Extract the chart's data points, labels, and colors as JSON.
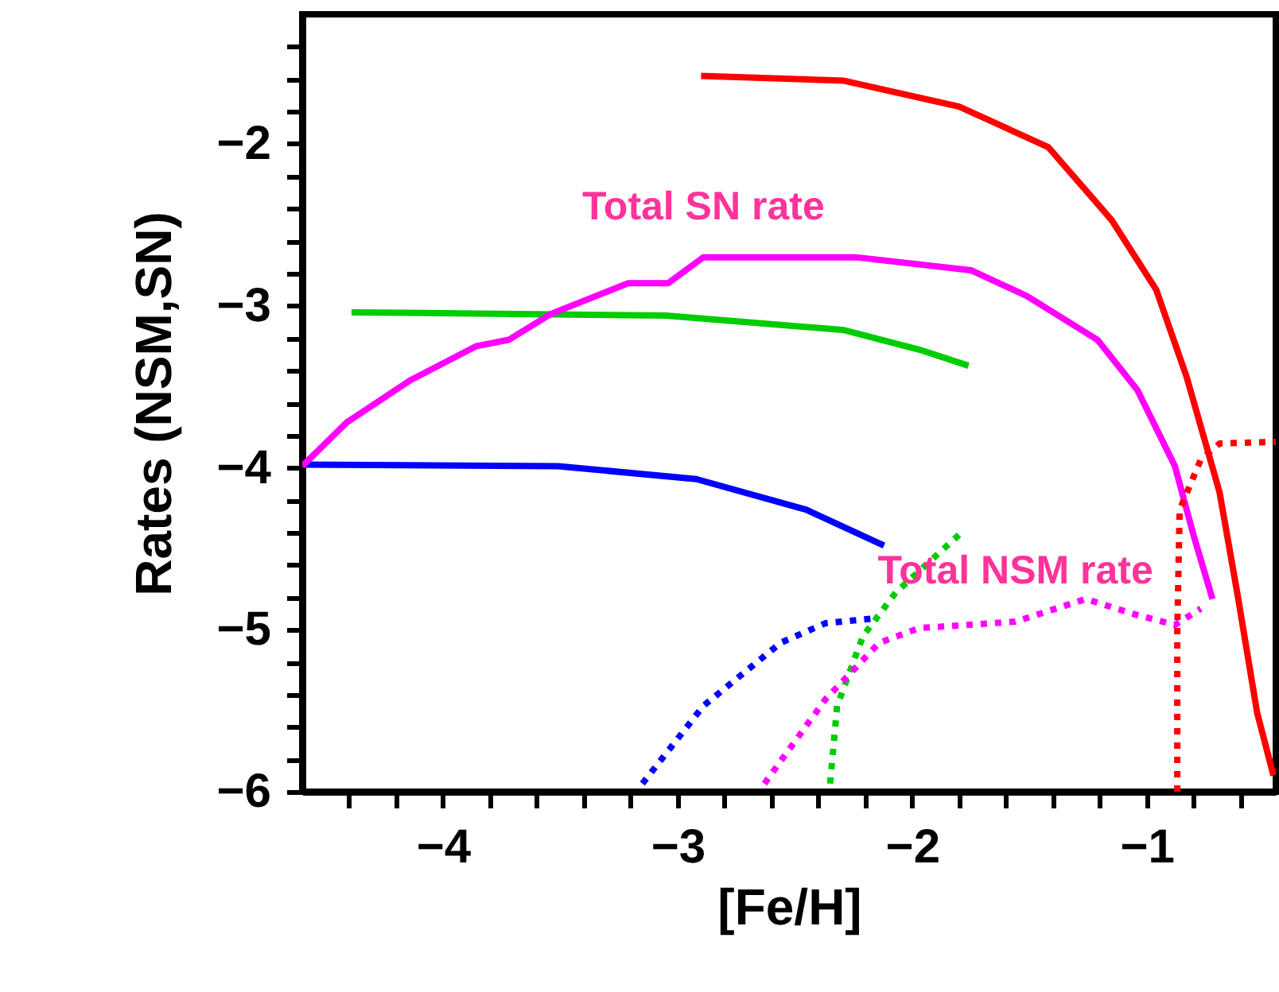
{
  "chart_data": {
    "type": "line",
    "xlabel": "[Fe/H]",
    "ylabel": "Rates  (NSM,SN)",
    "xlim": [
      -4.6,
      -0.45
    ],
    "ylim": [
      -6,
      -1.2
    ],
    "xticks": [
      {
        "value": -4.4,
        "label": null
      },
      {
        "value": -4.2,
        "label": null
      },
      -4,
      {
        "value": -3.8,
        "label": null
      },
      {
        "value": -3.6,
        "label": null
      },
      {
        "value": -3.4,
        "label": null
      },
      {
        "value": -3.2,
        "label": null
      },
      -3,
      {
        "value": -2.8,
        "label": null
      },
      {
        "value": -2.6,
        "label": null
      },
      {
        "value": -2.4,
        "label": null
      },
      {
        "value": -2.2,
        "label": null
      },
      -2,
      {
        "value": -1.8,
        "label": null
      },
      {
        "value": -1.6,
        "label": null
      },
      {
        "value": -1.4,
        "label": null
      },
      {
        "value": -1.2,
        "label": null
      },
      -1,
      {
        "value": -0.8,
        "label": null
      },
      {
        "value": -0.6,
        "label": null
      }
    ],
    "yticks": [
      -6,
      {
        "value": -5.8,
        "label": null
      },
      {
        "value": -5.6,
        "label": null
      },
      {
        "value": -5.4,
        "label": null
      },
      {
        "value": -5.2,
        "label": null
      },
      -5,
      {
        "value": -4.8,
        "label": null
      },
      {
        "value": -4.6,
        "label": null
      },
      {
        "value": -4.4,
        "label": null
      },
      {
        "value": -4.2,
        "label": null
      },
      -4,
      {
        "value": -3.8,
        "label": null
      },
      {
        "value": -3.6,
        "label": null
      },
      {
        "value": -3.4,
        "label": null
      },
      {
        "value": -3.2,
        "label": null
      },
      -3,
      {
        "value": -2.8,
        "label": null
      },
      {
        "value": -2.6,
        "label": null
      },
      {
        "value": -2.4,
        "label": null
      },
      {
        "value": -2.2,
        "label": null
      },
      -2,
      {
        "value": -1.8,
        "label": null
      },
      {
        "value": -1.6,
        "label": null
      },
      {
        "value": -1.4,
        "label": null
      }
    ],
    "grid": false,
    "series": [
      {
        "color": "#ff0000",
        "line_style": "solid",
        "x": [
          -2.9,
          -2.29,
          -1.8,
          -1.42,
          -1.15,
          -0.96,
          -0.83,
          -0.69,
          -0.61,
          -0.53,
          -0.46
        ],
        "values": [
          -1.58,
          -1.61,
          -1.77,
          -2.02,
          -2.47,
          -2.9,
          -3.44,
          -4.15,
          -4.81,
          -5.51,
          -5.9
        ]
      },
      {
        "color": "#00cc00",
        "line_style": "solid",
        "x": [
          -4.39,
          -3.05,
          -2.29,
          -1.97,
          -1.76
        ],
        "values": [
          -3.04,
          -3.06,
          -3.15,
          -3.27,
          -3.37
        ]
      },
      {
        "color": "#0000ff",
        "line_style": "solid",
        "x": [
          -4.6,
          -3.51,
          -2.92,
          -2.45,
          -2.12
        ],
        "values": [
          -3.98,
          -3.99,
          -4.07,
          -4.26,
          -4.48
        ]
      },
      {
        "name": "Total SN rate",
        "color": "#ff00ff",
        "line_style": "solid",
        "x": [
          -4.6,
          -4.41,
          -4.14,
          -3.86,
          -3.72,
          -3.54,
          -3.21,
          -3.04,
          -2.89,
          -2.24,
          -1.75,
          -1.51,
          -1.21,
          -1.04,
          -0.88,
          -0.8,
          -0.72
        ],
        "values": [
          -3.99,
          -3.72,
          -3.46,
          -3.25,
          -3.21,
          -3.05,
          -2.86,
          -2.86,
          -2.7,
          -2.7,
          -2.78,
          -2.94,
          -3.21,
          -3.52,
          -3.99,
          -4.42,
          -4.81
        ]
      },
      {
        "color": "#0000ff",
        "line_style": "dotted",
        "x": [
          -3.15,
          -2.89,
          -2.56,
          -2.37,
          -2.16
        ],
        "values": [
          -5.95,
          -5.47,
          -5.08,
          -4.96,
          -4.93
        ]
      },
      {
        "color": "#00cc00",
        "line_style": "dotted",
        "x": [
          -2.35,
          -2.32,
          -2.21,
          -2.07,
          -1.79
        ],
        "values": [
          -5.95,
          -5.47,
          -5.04,
          -4.77,
          -4.4
        ]
      },
      {
        "name": "Total NSM rate",
        "color": "#ff00ff",
        "line_style": "dotted",
        "x": [
          -2.63,
          -2.37,
          -2.14,
          -1.97,
          -1.56,
          -1.26,
          -1.04,
          -0.88,
          -0.77
        ],
        "values": [
          -5.95,
          -5.43,
          -5.08,
          -4.99,
          -4.95,
          -4.81,
          -4.91,
          -4.97,
          -4.87
        ]
      },
      {
        "color": "#ff0000",
        "line_style": "dotted",
        "x": [
          -0.87,
          -0.87,
          -0.86,
          -0.77,
          -0.69,
          -0.45
        ],
        "values": [
          -6,
          -5,
          -4.26,
          -3.95,
          -3.85,
          -3.84
        ]
      }
    ]
  }
}
